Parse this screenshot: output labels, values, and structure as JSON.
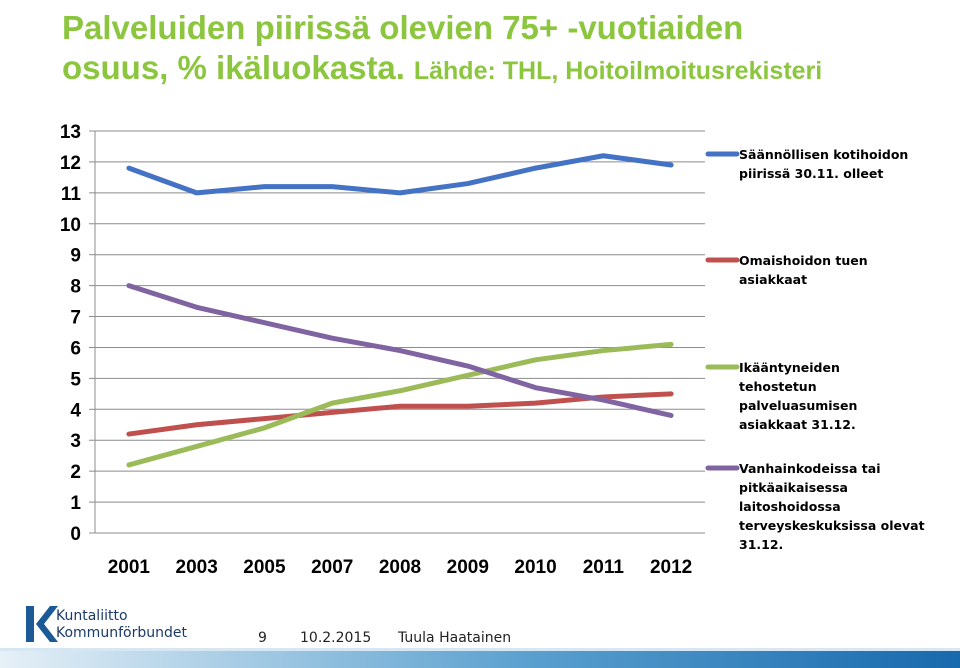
{
  "slide": {
    "title_main": "Palveluiden piirissä olevien 75+ -vuotiaiden",
    "title_line2": "osuus, % ikäluokasta.",
    "title_source": "Lähde: THL, Hoitoilmoitusrekisteri",
    "page_number": "9",
    "date": "10.2.2015",
    "author": "Tuula Haatainen",
    "logo_line1": "Kuntaliitto",
    "logo_line2": "Kommunförbundet",
    "logo_icon": "kuntaliitto-k-logo",
    "logo_color": "#1b5a96"
  },
  "chart_data": {
    "type": "line",
    "categories": [
      "2001",
      "2003",
      "2005",
      "2007",
      "2008",
      "2009",
      "2010",
      "2011",
      "2012"
    ],
    "ylim": [
      0,
      13
    ],
    "yticks": [
      "0",
      "1",
      "2",
      "3",
      "4",
      "5",
      "6",
      "7",
      "8",
      "9",
      "10",
      "11",
      "12",
      "13"
    ],
    "grid": true,
    "legend_position": "right",
    "series": [
      {
        "name": "Säännöllisen kotihoidon piirissä 30.11. olleet",
        "legend_lines": [
          "Säännöllisen kotihoidon",
          "piirissä 30.11. olleet"
        ],
        "color": "#4472c4",
        "values": [
          11.8,
          11.0,
          11.2,
          11.2,
          11.0,
          11.3,
          11.8,
          12.2,
          11.9
        ]
      },
      {
        "name": "Omaishoidon tuen asiakkaat",
        "legend_lines": [
          "Omaishoidon tuen",
          "asiakkaat"
        ],
        "color": "#c0504d",
        "values": [
          3.2,
          3.5,
          3.7,
          3.9,
          4.1,
          4.1,
          4.2,
          4.4,
          4.5
        ]
      },
      {
        "name": "Ikääntyneiden tehostetun palveluasumisen asiakkaat 31.12.",
        "legend_lines": [
          "Ikääntyneiden",
          "tehostetun",
          "palveluasumisen",
          "asiakkaat 31.12."
        ],
        "color": "#9bbb59",
        "values": [
          2.2,
          2.8,
          3.4,
          4.2,
          4.6,
          5.1,
          5.6,
          5.9,
          6.1
        ]
      },
      {
        "name": "Vanhainkodeissa tai pitkäaikaisessa laitoshoidossa terveyskeskuksissa olevat 31.12.",
        "legend_lines": [
          "Vanhainkodeissa tai",
          "pitkäaikaisessa",
          "laitoshoidossa",
          "terveyskeskuksissa olevat",
          "31.12."
        ],
        "color": "#8064a2",
        "values": [
          8.0,
          7.3,
          6.8,
          6.3,
          5.9,
          5.4,
          4.7,
          4.3,
          3.8
        ]
      }
    ]
  }
}
